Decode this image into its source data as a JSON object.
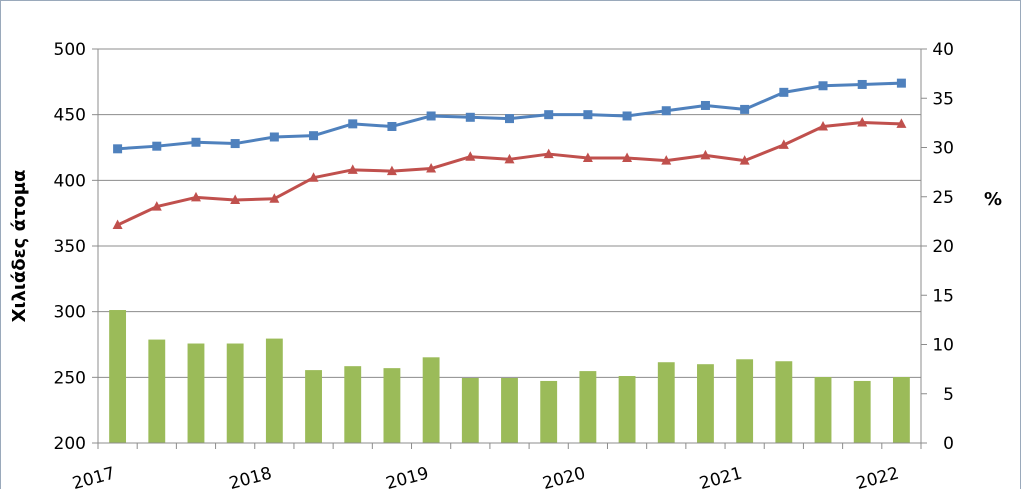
{
  "chart_data": {
    "type": "bar+line",
    "title": "",
    "ylabel_left": "Χιλιάδες άτομα",
    "ylabel_right": "%",
    "ylim_left": [
      200,
      500
    ],
    "ylim_right": [
      0,
      40
    ],
    "yticks_left": [
      "200",
      "250",
      "300",
      "350",
      "400",
      "450",
      "500"
    ],
    "yticks_right": [
      "0",
      "5",
      "10",
      "15",
      "20",
      "25",
      "30",
      "35",
      "40"
    ],
    "x_tick_labels": [
      {
        "label": "2017",
        "index": 0
      },
      {
        "label": "2018",
        "index": 4
      },
      {
        "label": "2019",
        "index": 8
      },
      {
        "label": "2020",
        "index": 12
      },
      {
        "label": "2021",
        "index": 16
      },
      {
        "label": "2022",
        "index": 20
      }
    ],
    "grid": true,
    "legend": "none",
    "n_points": 21,
    "series": [
      {
        "type": "bar",
        "axis": "right",
        "color": "#9bbb59",
        "values": [
          13.5,
          10.5,
          10.1,
          10.1,
          10.6,
          7.4,
          7.8,
          7.6,
          8.7,
          6.6,
          6.6,
          6.3,
          7.3,
          6.8,
          8.2,
          8.0,
          8.5,
          8.3,
          6.7,
          6.3,
          6.7
        ]
      },
      {
        "type": "line",
        "axis": "left",
        "color": "#4f81bd",
        "marker": "square",
        "values": [
          424,
          426,
          429,
          428,
          433,
          434,
          443,
          441,
          449,
          448,
          447,
          450,
          450,
          449,
          453,
          457,
          454,
          467,
          472,
          473,
          474
        ]
      },
      {
        "type": "line",
        "axis": "left",
        "color": "#c0504d",
        "marker": "triangle",
        "values": [
          366,
          380,
          387,
          385,
          386,
          402,
          408,
          407,
          409,
          418,
          416,
          420,
          417,
          417,
          415,
          419,
          415,
          427,
          441,
          444,
          443
        ]
      }
    ]
  }
}
